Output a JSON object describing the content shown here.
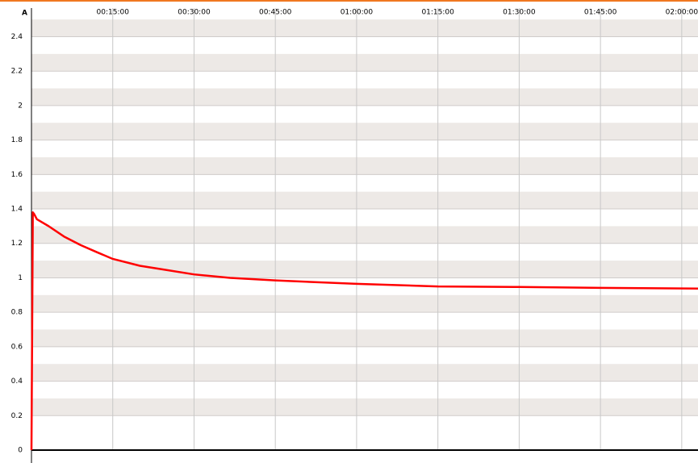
{
  "chart_data": {
    "type": "line",
    "y_axis_label": "A",
    "x": [
      0,
      15,
      30,
      60,
      190,
      360,
      545,
      720,
      900,
      1200,
      1440,
      1800,
      2200,
      2700,
      3600,
      4500,
      5400,
      6300,
      7380
    ],
    "series": [
      {
        "color": "#ff0000",
        "values": [
          0,
          1.38,
          1.37,
          1.34,
          1.3,
          1.24,
          1.19,
          1.15,
          1.11,
          1.07,
          1.05,
          1.02,
          1.0,
          0.985,
          0.965,
          0.95,
          0.947,
          0.942,
          0.938
        ]
      }
    ],
    "xlim": [
      0,
      7380
    ],
    "xticks": [
      {
        "value": 900,
        "label": "00:15:00"
      },
      {
        "value": 1800,
        "label": "00:30:00"
      },
      {
        "value": 2700,
        "label": "00:45:00"
      },
      {
        "value": 3600,
        "label": "01:00:00"
      },
      {
        "value": 4500,
        "label": "01:15:00"
      },
      {
        "value": 5400,
        "label": "01:30:00"
      },
      {
        "value": 6300,
        "label": "01:45:00"
      },
      {
        "value": 7200,
        "label": "02:00:00"
      }
    ],
    "ylim": [
      0,
      2.51
    ],
    "yticks": [
      0,
      0.2,
      0.4,
      0.6,
      0.8,
      1,
      1.2,
      1.4,
      1.6,
      1.8,
      2,
      2.2,
      2.4
    ],
    "grid": true
  }
}
